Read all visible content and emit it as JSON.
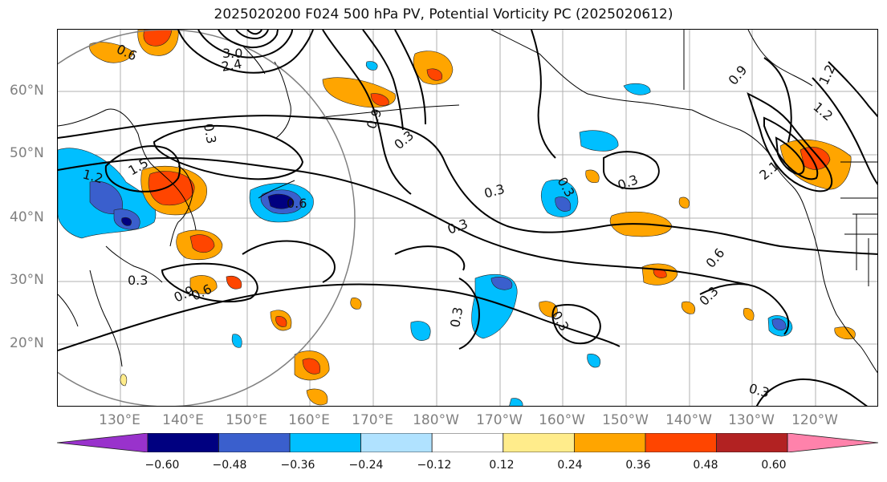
{
  "title": "2025020200 F024 500 hPa PV, Potential Vorticity PC (2025020612)",
  "lat_labels": [
    "60°N",
    "50°N",
    "40°N",
    "30°N",
    "20°N"
  ],
  "lon_labels": [
    "130°E",
    "140°E",
    "150°E",
    "160°E",
    "170°E",
    "180°W",
    "170°W",
    "160°W",
    "150°W",
    "140°W",
    "130°W",
    "120°W"
  ],
  "contour_labels": [
    "0.6",
    "3.0",
    "2.4",
    "0.3",
    "0.9",
    "1.2",
    "1.5",
    "0.6",
    "0.3",
    "0.3",
    "0.3",
    "0.3",
    "0.3",
    "0.9",
    "0.6",
    "0.3",
    "0.3",
    "0.3",
    "0.6",
    "0.3",
    "0.9",
    "1.2",
    "1.2",
    "2.1",
    "0.3"
  ],
  "colorbar": {
    "ticks": [
      "−0.60",
      "−0.48",
      "−0.36",
      "−0.24",
      "−0.12",
      "0.12",
      "0.24",
      "0.36",
      "0.48",
      "0.60"
    ],
    "colors": [
      "#9932CC",
      "#000080",
      "#3A5FCD",
      "#00BFFF",
      "#B0E2FF",
      "#FFFFFF",
      "#FFEC8B",
      "#FFA500",
      "#FF4500",
      "#B22222",
      "#FF82AB"
    ]
  }
}
